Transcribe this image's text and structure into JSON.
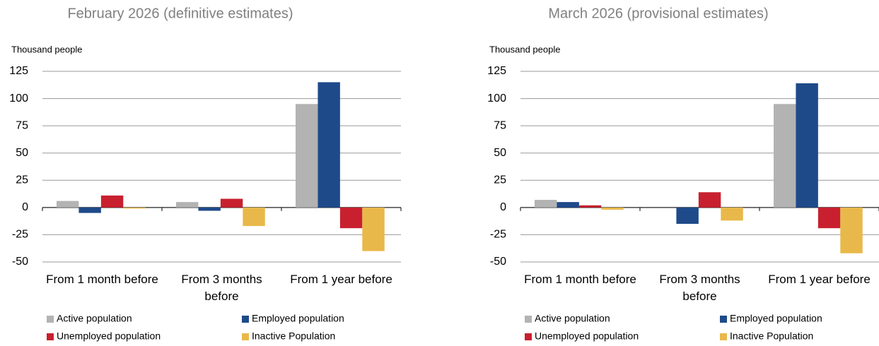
{
  "chart_data": [
    {
      "type": "bar",
      "title": "February 2026 (definitive estimates)",
      "y_label": "Thousand people",
      "categories": [
        "From 1 month before",
        "From 3 months before",
        "From 1 year before"
      ],
      "series": [
        {
          "name": "Active population",
          "color": "#b3b3b3",
          "values": [
            6,
            5,
            95
          ]
        },
        {
          "name": "Employed population",
          "color": "#1f4a8a",
          "values": [
            -5,
            -3,
            115
          ]
        },
        {
          "name": "Unemployed population",
          "color": "#c8202f",
          "values": [
            11,
            8,
            -19
          ]
        },
        {
          "name": "Inactive Population",
          "color": "#e9b84a",
          "values": [
            -1,
            -17,
            -40
          ]
        }
      ],
      "ylim": [
        -50,
        125
      ],
      "yticks": [
        -50,
        -25,
        0,
        25,
        50,
        75,
        100,
        125
      ],
      "grid": true
    },
    {
      "type": "bar",
      "title": "March 2026 (provisional estimates)",
      "y_label": "Thousand people",
      "categories": [
        "From 1 month before",
        "From 3 months before",
        "From 1 year before"
      ],
      "series": [
        {
          "name": "Active population",
          "color": "#b3b3b3",
          "values": [
            7,
            0,
            95
          ]
        },
        {
          "name": "Employed population",
          "color": "#1f4a8a",
          "values": [
            5,
            -15,
            114
          ]
        },
        {
          "name": "Unemployed population",
          "color": "#c8202f",
          "values": [
            2,
            14,
            -19
          ]
        },
        {
          "name": "Inactive Population",
          "color": "#e9b84a",
          "values": [
            -2,
            -12,
            -42
          ]
        }
      ],
      "ylim": [
        -50,
        125
      ],
      "yticks": [
        -50,
        -25,
        0,
        25,
        50,
        75,
        100,
        125
      ],
      "grid": true
    }
  ]
}
